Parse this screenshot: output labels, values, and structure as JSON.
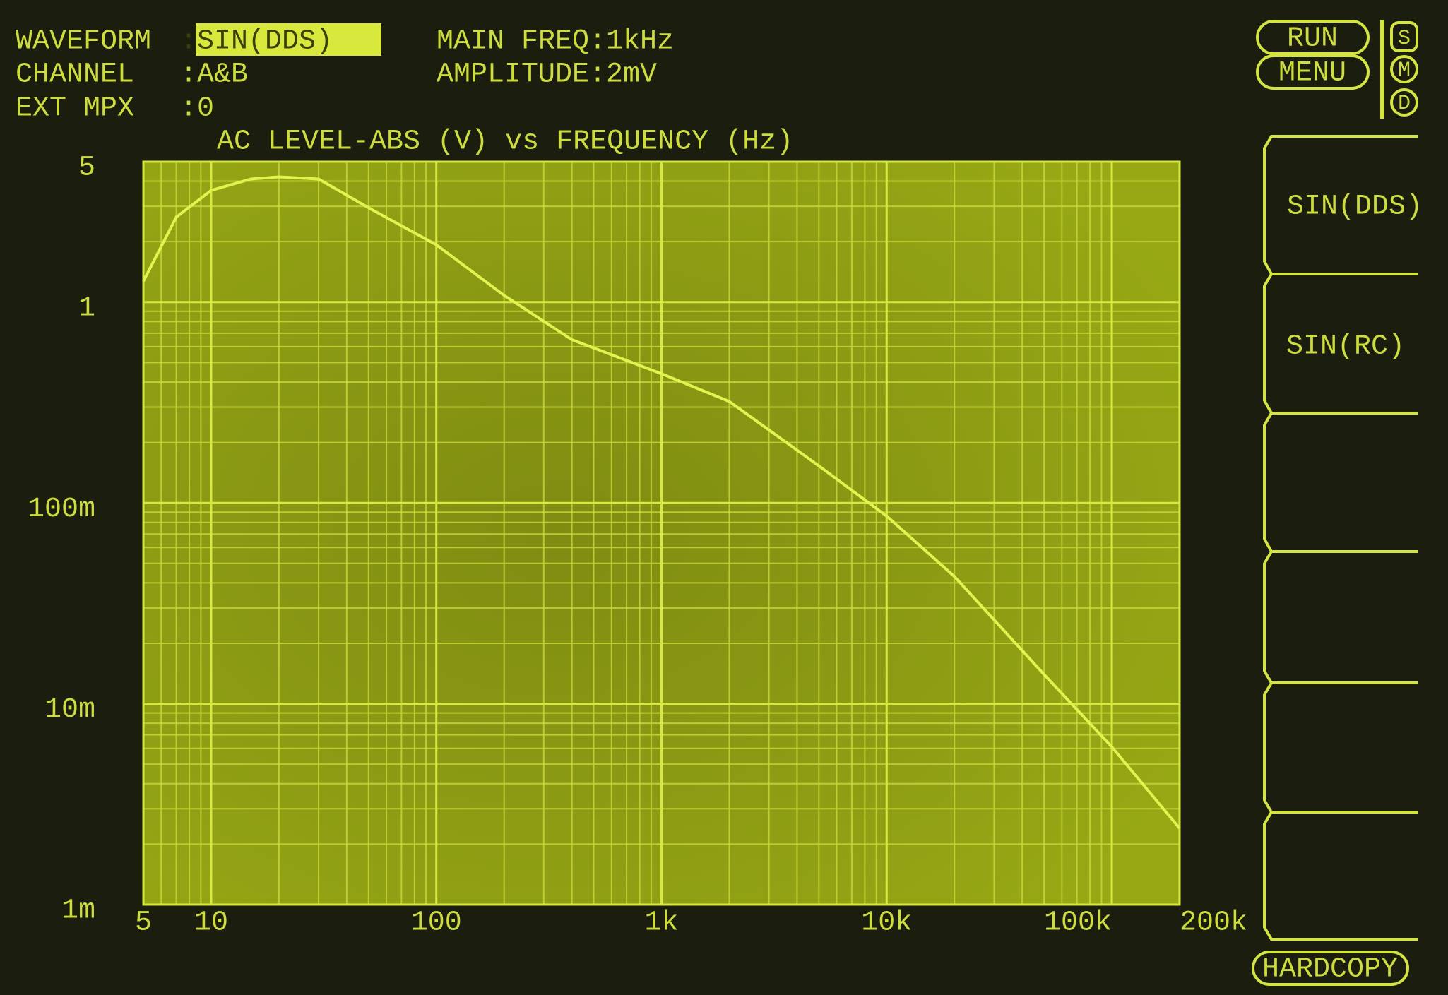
{
  "header": {
    "waveform_label": "WAVEFORM",
    "waveform_value": ":SIN(DDS)",
    "channel_label": "CHANNEL",
    "channel_value": ":A&B",
    "ext_mpx_label": "EXT MPX",
    "ext_mpx_value": ":0",
    "main_freq": "MAIN FREQ:1kHz",
    "amplitude": "AMPLITUDE:2mV"
  },
  "controls": {
    "run": "RUN",
    "menu": "MENU",
    "hardcopy": "HARDCOPY",
    "indicators": [
      "S",
      "M",
      "D"
    ]
  },
  "softkeys": [
    "SIN(DDS)",
    "SIN(RC)"
  ],
  "chart_data": {
    "type": "line",
    "title": "AC LEVEL-ABS (V) vs FREQUENCY (Hz)",
    "log_x": true,
    "log_y": true,
    "grid": true,
    "color": "#e2f24e",
    "x": [
      5,
      7,
      10,
      15,
      20,
      30,
      50,
      100,
      200,
      400,
      1000,
      2000,
      5000,
      10000,
      20000,
      50000,
      100000,
      200000
    ],
    "values": [
      1.27,
      2.65,
      3.6,
      4.1,
      4.2,
      4.1,
      2.95,
      1.93,
      1.08,
      0.65,
      0.44,
      0.32,
      0.153,
      0.086,
      0.043,
      0.014,
      0.0061,
      0.0024
    ],
    "xlim": [
      5,
      200000
    ],
    "xticks": [
      5,
      10,
      100,
      {
        "value": 1000,
        "label": "1k"
      },
      {
        "value": 10000,
        "label": "10k"
      },
      {
        "value": 100000,
        "label": "100k"
      },
      {
        "value": 200000,
        "label": "200k"
      }
    ],
    "ylim": [
      0.001,
      5
    ],
    "yticks": [
      {
        "value": 0.001,
        "label": "1m"
      },
      {
        "value": 0.01,
        "label": "10m"
      },
      {
        "value": 0.1,
        "label": "100m"
      },
      1,
      5
    ],
    "xgrid": [
      6,
      7,
      8,
      9,
      20,
      30,
      40,
      50,
      60,
      70,
      80,
      90,
      200,
      300,
      400,
      500,
      600,
      700,
      800,
      900,
      2000,
      3000,
      4000,
      5000,
      6000,
      7000,
      8000,
      9000,
      20000,
      30000,
      40000,
      50000,
      60000,
      70000,
      80000,
      90000
    ],
    "ygrid": [
      0.002,
      0.003,
      0.004,
      0.005,
      0.006,
      0.007,
      0.008,
      0.009,
      0.02,
      0.03,
      0.04,
      0.05,
      0.06,
      0.07,
      0.08,
      0.09,
      0.2,
      0.3,
      0.4,
      0.5,
      0.6,
      0.7,
      0.8,
      0.9,
      2,
      3,
      4
    ]
  }
}
